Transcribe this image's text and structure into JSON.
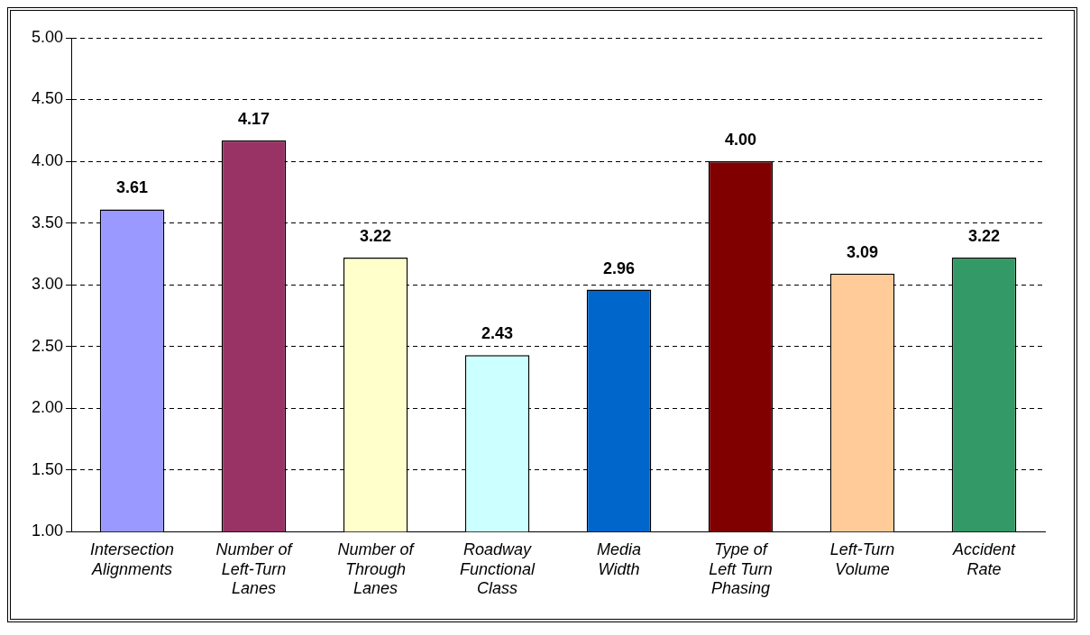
{
  "chart_data": {
    "type": "bar",
    "categories": [
      "Intersection Alignments",
      "Number of Left-Turn Lanes",
      "Number of Through Lanes",
      "Roadway Functional Class",
      "Media Width",
      "Type of Left Turn Phasing",
      "Left-Turn Volume",
      "Accident Rate"
    ],
    "values": [
      3.61,
      4.17,
      3.22,
      2.43,
      2.96,
      4.0,
      3.09,
      3.22
    ],
    "colors": [
      "#9999ff",
      "#993366",
      "#ffffcc",
      "#ccffff",
      "#0066cc",
      "#800000",
      "#ffcc99",
      "#339966"
    ],
    "ylim": [
      1,
      5
    ],
    "yticks": [
      {
        "value": 1,
        "label": "1.00"
      },
      {
        "value": 1.5,
        "label": "1.50"
      },
      {
        "value": 2,
        "label": "2.00"
      },
      {
        "value": 2.5,
        "label": "2.50"
      },
      {
        "value": 3,
        "label": "3.00"
      },
      {
        "value": 3.5,
        "label": "3.50"
      },
      {
        "value": 4,
        "label": "4.00"
      },
      {
        "value": 4.5,
        "label": "4.50"
      },
      {
        "value": 5,
        "label": "5.00"
      }
    ],
    "value_labels": [
      "3.61",
      "4.17",
      "3.22",
      "2.43",
      "2.96",
      "4.00",
      "3.09",
      "3.22"
    ],
    "grid": "y",
    "legend": false
  }
}
